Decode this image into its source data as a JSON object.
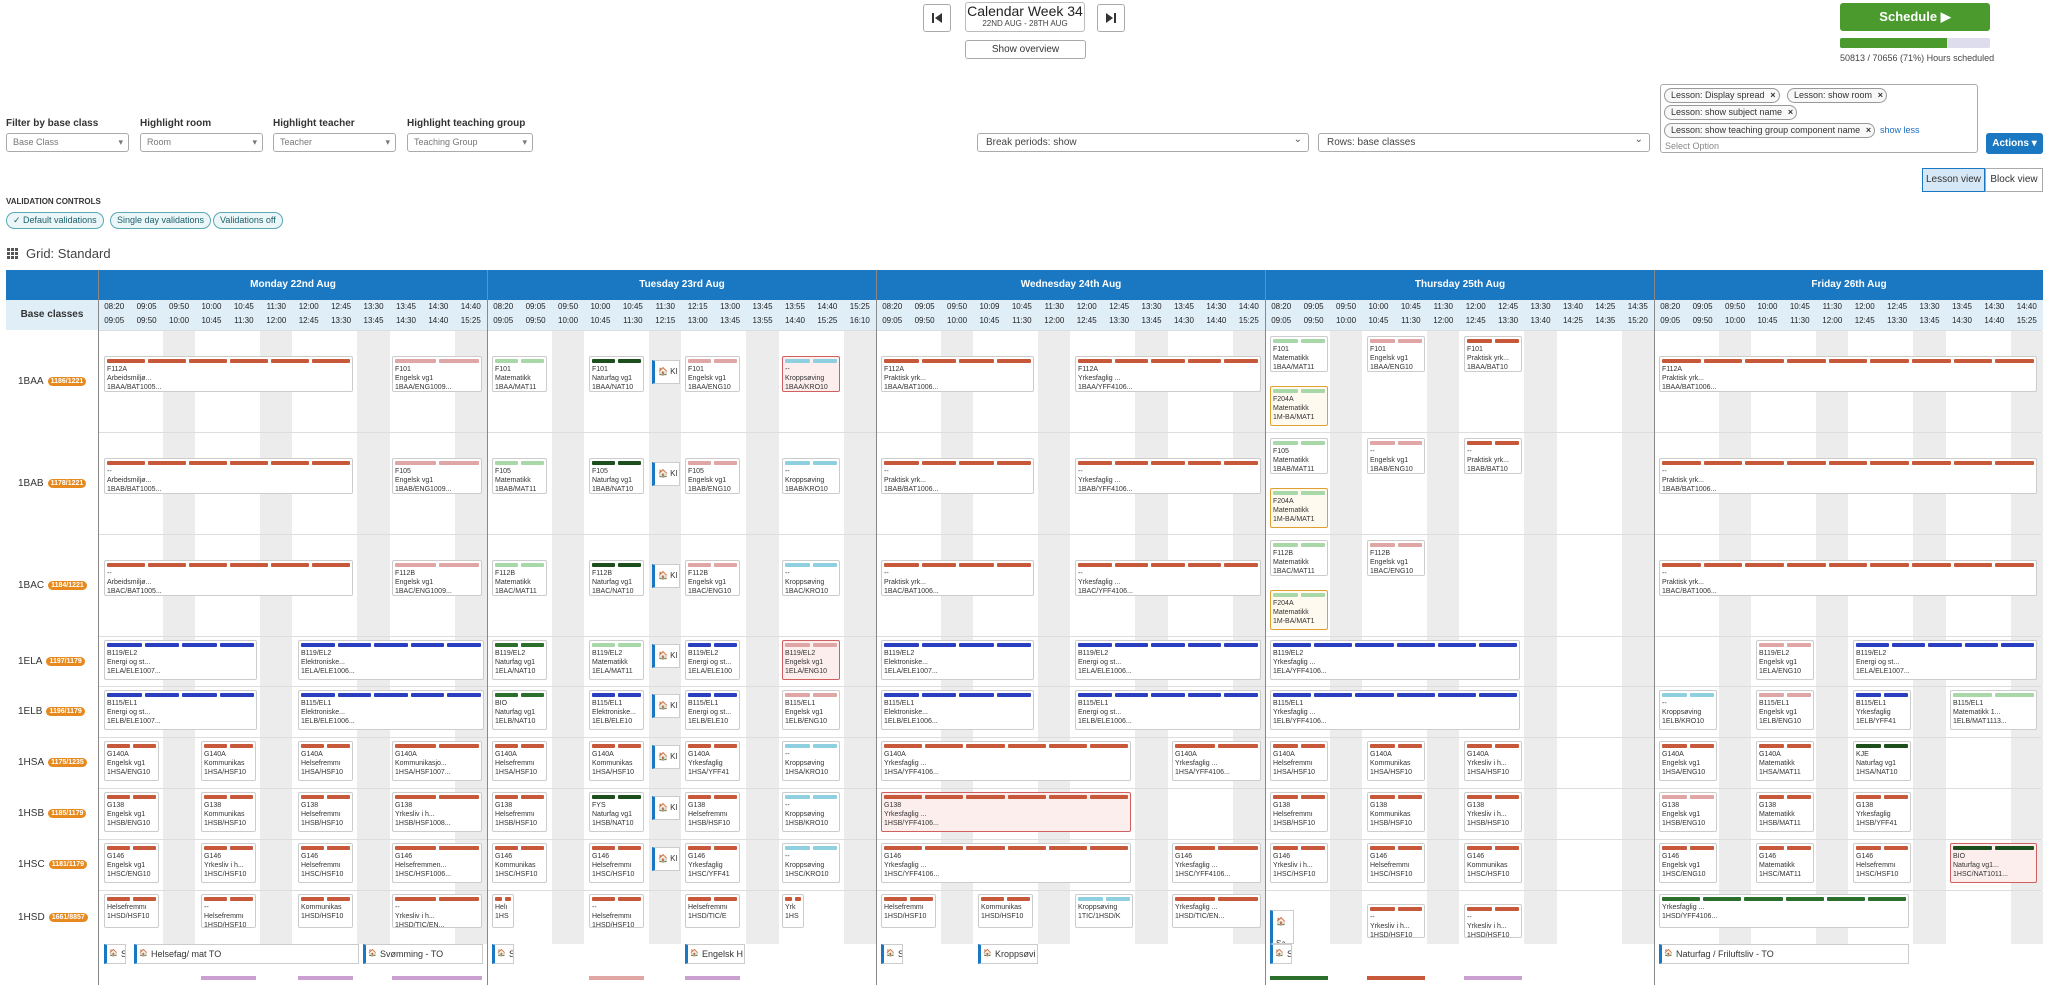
{
  "header": {
    "week_title": "Calendar Week 34",
    "week_range": "22ND AUG - 28TH AUG",
    "overview_label": "Show overview",
    "schedule_label": "Schedule ▶",
    "progress_fraction": 0.71,
    "progress_text": "50813 / 70656 (71%) Hours scheduled"
  },
  "filters": {
    "base_class_label": "Filter by base class",
    "base_class_value": "Base Class",
    "room_label": "Highlight room",
    "room_value": "Room",
    "teacher_label": "Highlight teacher",
    "teacher_value": "Teacher",
    "group_label": "Highlight teaching group",
    "group_value": "Teaching Group",
    "break_periods": "Break periods: show",
    "rows": "Rows: base classes",
    "tags": [
      "Lesson: Display spread",
      "Lesson: show room",
      "Lesson: show subject name",
      "Lesson: show teaching group component name"
    ],
    "show_less": "show less",
    "select_option": "Select Option",
    "actions_label": "Actions ▾"
  },
  "views": {
    "lesson": "Lesson view",
    "block": "Block view"
  },
  "validation": {
    "title": "VALIDATION CONTROLS",
    "default": "✓ Default validations",
    "single": "Single day validations",
    "off": "Validations off"
  },
  "grid": {
    "label": "Grid: Standard",
    "base_classes_label": "Base classes",
    "days": [
      "Monday 22nd Aug",
      "Tuesday 23rd Aug",
      "Wednesday 24th Aug",
      "Thursday 25th Aug",
      "Friday 26th Aug"
    ],
    "times": [
      [
        "08:20",
        "09:05",
        "09:50",
        "10:00",
        "10:45",
        "11:30",
        "12:00",
        "12:45",
        "13:30",
        "13:45",
        "14:30",
        "14:40"
      ],
      [
        "09:05",
        "09:50",
        "10:00",
        "10:45",
        "11:30",
        "12:00",
        "12:45",
        "13:30",
        "13:45",
        "14:30",
        "14:40",
        "15:25"
      ],
      [
        "08:20",
        "09:05",
        "09:50",
        "10:00",
        "10:45",
        "11:30",
        "12:15",
        "13:00",
        "13:45",
        "13:55",
        "14:40",
        "15:25"
      ],
      [
        "09:05",
        "09:50",
        "10:00",
        "10:45",
        "11:30",
        "12:15",
        "13:00",
        "13:45",
        "13:55",
        "14:40",
        "15:25",
        "16:10"
      ],
      [
        "08:20",
        "09:05",
        "09:50",
        "10:09",
        "10:45",
        "11:30",
        "12:00",
        "12:45",
        "13:30",
        "13:45",
        "14:30",
        "14:40"
      ],
      [
        "09:05",
        "09:50",
        "10:00",
        "10:45",
        "11:30",
        "12:00",
        "12:45",
        "13:30",
        "13:45",
        "14:30",
        "14:40",
        "15:25"
      ],
      [
        "08:20",
        "09:05",
        "09:50",
        "10:00",
        "10:45",
        "11:30",
        "12:00",
        "12:45",
        "13:30",
        "13:40",
        "14:25",
        "14:35"
      ],
      [
        "09:05",
        "09:50",
        "10:00",
        "10:45",
        "11:30",
        "12:00",
        "12:45",
        "13:30",
        "13:40",
        "14:25",
        "14:35",
        "15:20"
      ],
      [
        "08:20",
        "09:05",
        "09:50",
        "10:00",
        "10:45",
        "11:30",
        "12:00",
        "12:45",
        "13:30",
        "13:45",
        "14:30",
        "14:40"
      ],
      [
        "09:05",
        "09:50",
        "10:00",
        "10:45",
        "11:30",
        "12:00",
        "12:45",
        "13:30",
        "13:45",
        "14:30",
        "14:40",
        "15:25"
      ]
    ],
    "rows": [
      {
        "name": "1BAA",
        "badge": "1186/1221"
      },
      {
        "name": "1BAB",
        "badge": "1178/1221"
      },
      {
        "name": "1BAC",
        "badge": "1184/1221"
      },
      {
        "name": "1ELA",
        "badge": "1197/1179"
      },
      {
        "name": "1ELB",
        "badge": "1196/1179"
      },
      {
        "name": "1HSA",
        "badge": "1175/1235"
      },
      {
        "name": "1HSB",
        "badge": "1185/1179"
      },
      {
        "name": "1HSC",
        "badge": "1181/1179"
      },
      {
        "name": "1HSD",
        "badge": "1661/8857"
      }
    ],
    "footer": [
      "Sa",
      "Helsefag/ mat TO",
      "Svømming - TO",
      "Sa",
      "Engelsk H",
      "Sa",
      "Kroppsøvi",
      "Sa",
      "Naturfag / Friluftsliv - TO"
    ]
  },
  "colors": {
    "accent": "#1a78c2",
    "schedule": "#4a9a2e",
    "badge": "#e68a1f",
    "orange": "#c8583a",
    "pink": "#e0a5a5",
    "green": "#2c6e2c",
    "ltgreen": "#a8d8a8",
    "blue": "#2a3ec0",
    "cyan": "#8fd0e0",
    "dgreen": "#1c4f1c"
  }
}
